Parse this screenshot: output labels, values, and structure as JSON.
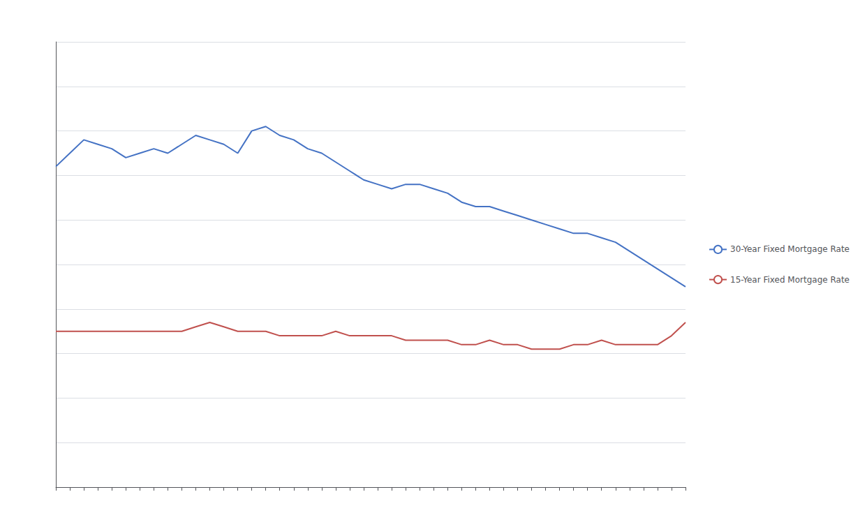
{
  "chart_data": {
    "type": "line",
    "categories": [
      null,
      null,
      null,
      null,
      null,
      null,
      null,
      null,
      null,
      null,
      null,
      null,
      null,
      null,
      null,
      null,
      null,
      null,
      null,
      null,
      null,
      null,
      null,
      null,
      null,
      null,
      null,
      null,
      null,
      null,
      null,
      null,
      null,
      null,
      null,
      null,
      null,
      null,
      null,
      null,
      null,
      null,
      null,
      null,
      null,
      null
    ],
    "series": [
      {
        "name": "30-Year Fixed Mortgage Rate",
        "color": "#4472c4",
        "values": [
          7.2,
          7.5,
          7.8,
          7.7,
          7.6,
          7.4,
          7.5,
          7.6,
          7.5,
          7.7,
          7.9,
          7.8,
          7.7,
          7.5,
          8.0,
          8.1,
          7.9,
          7.8,
          7.6,
          7.5,
          7.3,
          7.1,
          6.9,
          6.8,
          6.7,
          6.8,
          6.8,
          6.7,
          6.6,
          6.4,
          6.3,
          6.3,
          6.2,
          6.1,
          6.0,
          5.9,
          5.8,
          5.7,
          5.7,
          5.6,
          5.5,
          5.3,
          5.1,
          4.9,
          4.7,
          4.5
        ]
      },
      {
        "name": "15-Year Fixed Mortgage Rate",
        "color": "#c0504d",
        "values": [
          3.5,
          3.5,
          3.5,
          3.5,
          3.5,
          3.5,
          3.5,
          3.5,
          3.5,
          3.5,
          3.6,
          3.7,
          3.6,
          3.5,
          3.5,
          3.5,
          3.4,
          3.4,
          3.4,
          3.4,
          3.5,
          3.4,
          3.4,
          3.4,
          3.4,
          3.3,
          3.3,
          3.3,
          3.3,
          3.2,
          3.2,
          3.3,
          3.2,
          3.2,
          3.1,
          3.1,
          3.1,
          3.2,
          3.2,
          3.3,
          3.2,
          3.2,
          3.2,
          3.2,
          3.4,
          3.7
        ]
      }
    ],
    "ylim": [
      0,
      10
    ],
    "yticks": [
      0,
      1,
      2,
      3,
      4,
      5,
      6,
      7,
      8,
      9,
      10
    ],
    "grid": true,
    "legend": "right",
    "tick_labels": false
  }
}
